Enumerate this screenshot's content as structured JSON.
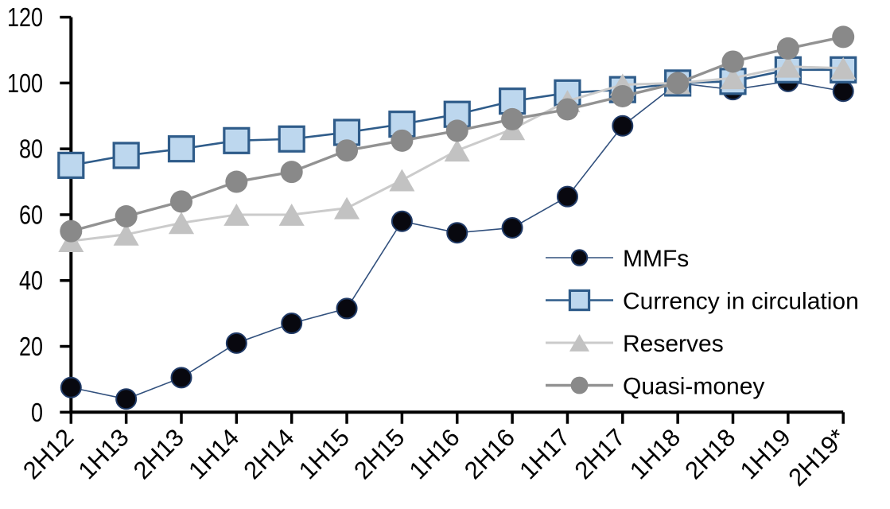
{
  "chart_data": {
    "type": "line",
    "title": "",
    "xlabel": "",
    "ylabel": "",
    "grid": false,
    "legend_position": "inside-right",
    "ylim": [
      0,
      120
    ],
    "yticks": [
      0,
      20,
      40,
      60,
      80,
      100,
      120
    ],
    "categories": [
      "2H12",
      "1H13",
      "2H13",
      "1H14",
      "2H14",
      "1H15",
      "2H15",
      "1H16",
      "2H16",
      "1H17",
      "2H17",
      "1H18",
      "2H18",
      "1H19",
      "2H19*"
    ],
    "series": [
      {
        "name": "MMFs",
        "marker": "circle",
        "marker_fill": "#08080f",
        "marker_stroke": "#203a66",
        "marker_stroke_width": 2,
        "marker_size": 25,
        "line_color": "#31507d",
        "line_width": 1.6,
        "values": [
          7.5,
          4,
          10.5,
          21,
          27,
          31.5,
          58,
          54.5,
          56,
          65.5,
          87,
          100,
          98,
          100.5,
          97.5
        ]
      },
      {
        "name": "Currency in circulation",
        "marker": "square",
        "marker_fill": "#bdd7ee",
        "marker_stroke": "#2f5c8a",
        "marker_stroke_width": 3.2,
        "marker_size": 31,
        "line_color": "#2f5c8a",
        "line_width": 2.6,
        "values": [
          75,
          78,
          80,
          82.5,
          83,
          85,
          87.5,
          90.5,
          94.5,
          97,
          98,
          100,
          100.5,
          104,
          104
        ]
      },
      {
        "name": "Reserves",
        "marker": "triangle",
        "marker_fill": "#c2c2c2",
        "marker_stroke": "none",
        "marker_stroke_width": 0,
        "marker_size": 30,
        "line_color": "#cbcbcb",
        "line_width": 3,
        "values": [
          52,
          54,
          57.5,
          60,
          60,
          62,
          70.5,
          79.5,
          86,
          94.5,
          99.5,
          100,
          101.5,
          105,
          104.5
        ]
      },
      {
        "name": "Quasi-money",
        "marker": "circle",
        "marker_fill": "#898989",
        "marker_stroke": "none",
        "marker_stroke_width": 0,
        "marker_size": 28,
        "line_color": "#929292",
        "line_width": 3.4,
        "values": [
          55,
          59.5,
          64,
          70,
          73,
          79.5,
          82.5,
          85.5,
          89,
          92,
          96,
          100,
          106.5,
          110.5,
          114
        ]
      }
    ],
    "axis_color": "#000000",
    "text_color": "#000000"
  }
}
